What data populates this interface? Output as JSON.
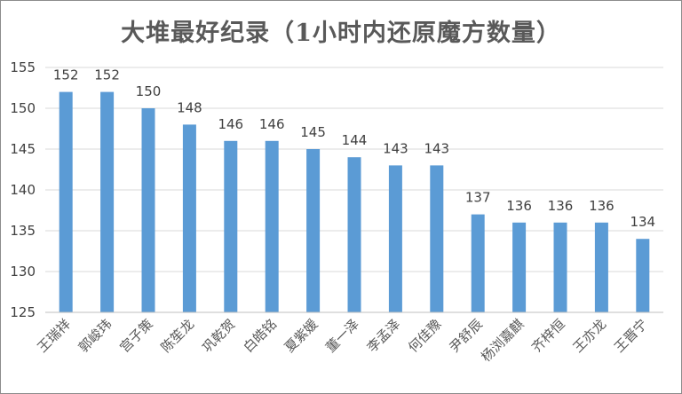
{
  "chart_data": {
    "type": "bar",
    "title": "大堆最好纪录（1小时内还原魔方数量）",
    "xlabel": "",
    "ylabel": "",
    "categories": [
      "王瑞祥",
      "郭峻玮",
      "宫子策",
      "陈笙龙",
      "巩乾贺",
      "白皓铭",
      "夏紫媛",
      "董一泽",
      "李孟泽",
      "何佳豫",
      "尹舒辰",
      "杨浏嘉麒",
      "齐梓恒",
      "王亦龙",
      "王晋宁"
    ],
    "values": [
      152,
      152,
      150,
      148,
      146,
      146,
      145,
      144,
      143,
      143,
      137,
      136,
      136,
      136,
      134
    ],
    "ylim": [
      125,
      155
    ],
    "yticks": [
      125,
      130,
      135,
      140,
      145,
      150,
      155
    ],
    "grid": true,
    "data_labels": true,
    "bar_color": "#5b9bd5"
  }
}
